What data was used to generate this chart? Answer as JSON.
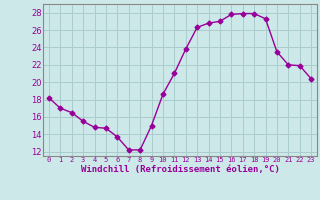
{
  "x": [
    0,
    1,
    2,
    3,
    4,
    5,
    6,
    7,
    8,
    9,
    10,
    11,
    12,
    13,
    14,
    15,
    16,
    17,
    18,
    19,
    20,
    21,
    22,
    23
  ],
  "y": [
    18.2,
    17.0,
    16.5,
    15.5,
    14.8,
    14.7,
    13.7,
    12.2,
    12.2,
    15.0,
    18.6,
    21.0,
    23.8,
    26.3,
    26.8,
    27.0,
    27.8,
    27.9,
    27.9,
    27.3,
    23.5,
    22.0,
    21.9,
    20.4
  ],
  "line_color": "#990099",
  "marker": "D",
  "markersize": 2.5,
  "linewidth": 1.0,
  "xlabel": "Windchill (Refroidissement éolien,°C)",
  "ylabel_ticks": [
    12,
    14,
    16,
    18,
    20,
    22,
    24,
    26,
    28
  ],
  "ylim": [
    11.5,
    29.0
  ],
  "xlim": [
    -0.5,
    23.5
  ],
  "bg_color": "#cce8e8",
  "grid_color": "#aacccc",
  "tick_label_color": "#990099",
  "xlabel_color": "#990099",
  "spine_color": "#888888"
}
